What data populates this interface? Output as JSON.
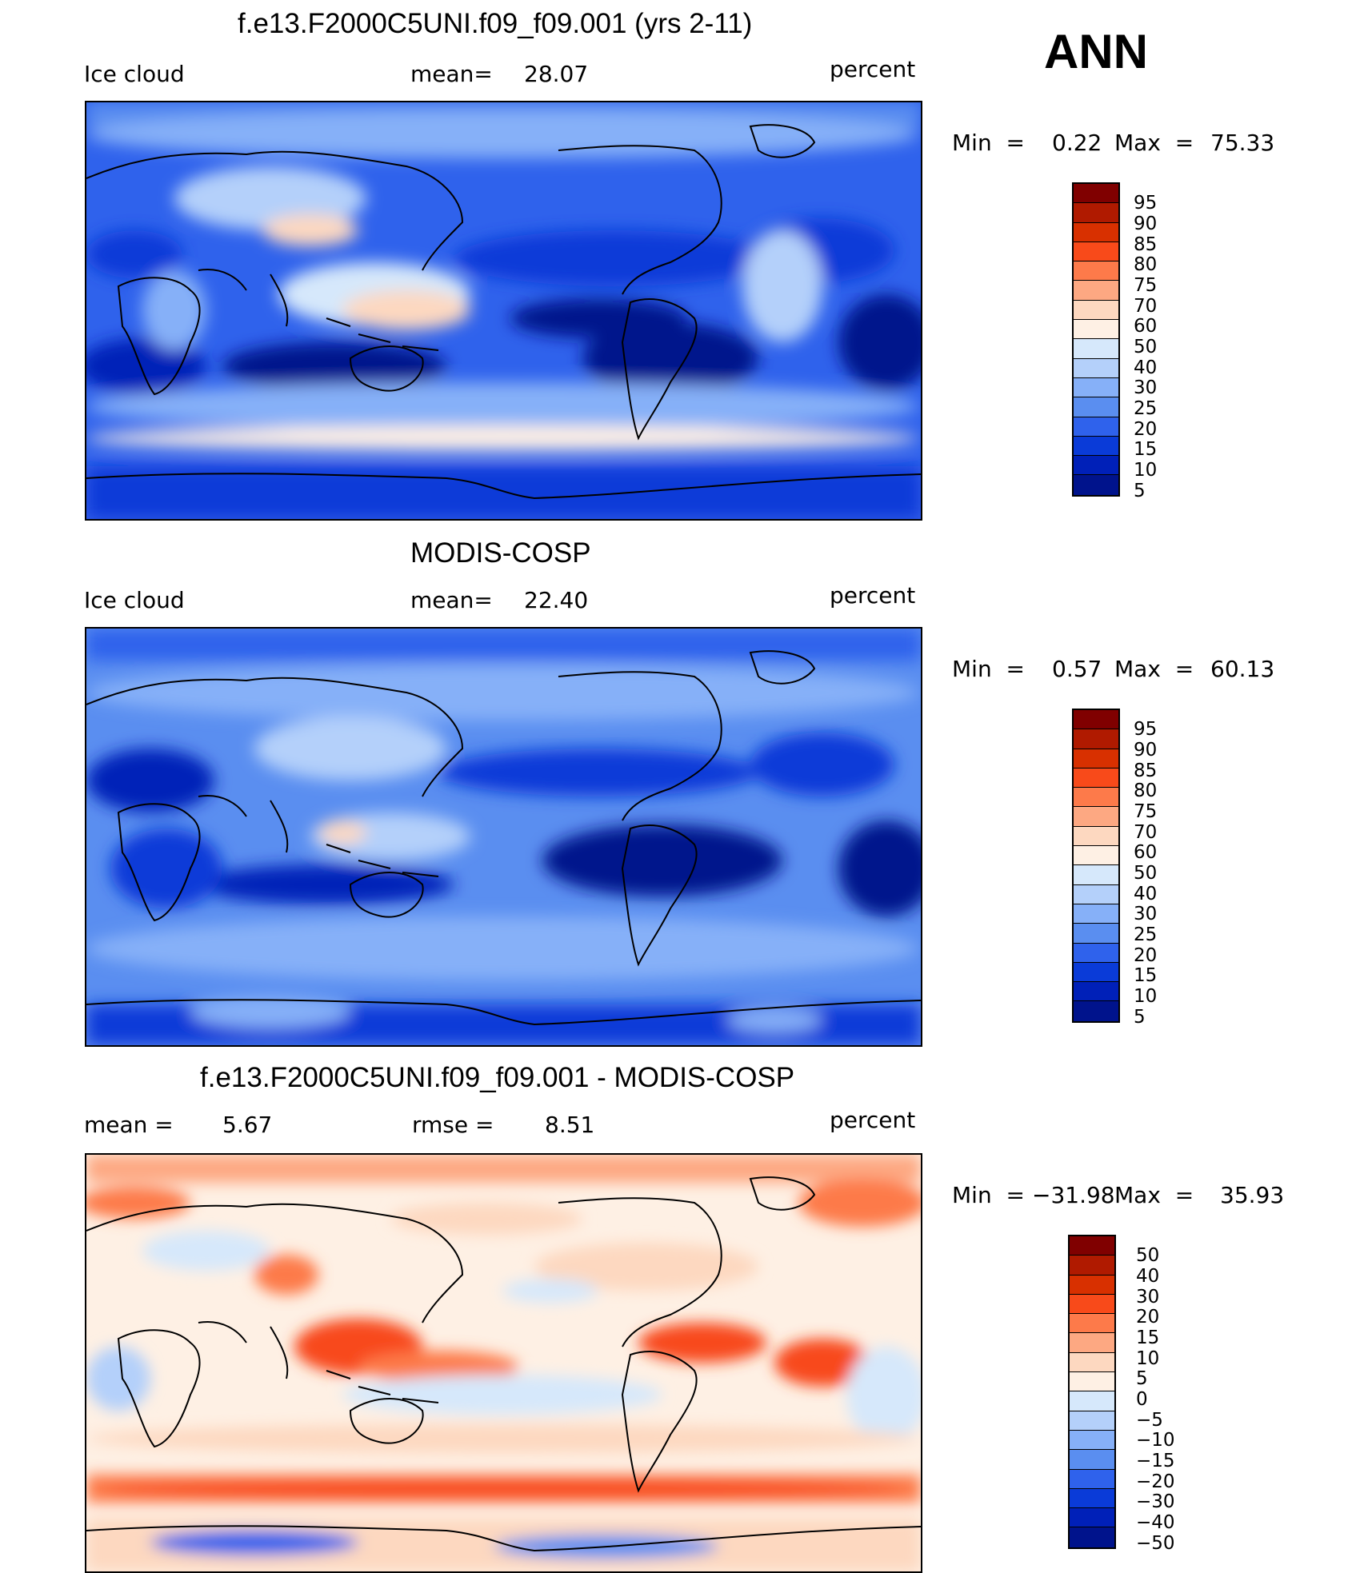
{
  "season": "ANN",
  "panels": [
    {
      "title": "f.e13.F2000C5UNI.f09_f09.001 (yrs 2-11)",
      "left_label": "Ice cloud",
      "mid_label": "mean=",
      "mid_value": "28.07",
      "units": "percent",
      "min_label": "Min  =",
      "min_value": "0.22",
      "max_label": "Max  =",
      "max_value": "75.33",
      "legend": [
        "95",
        "90",
        "85",
        "80",
        "75",
        "70",
        "60",
        "50",
        "40",
        "30",
        "25",
        "20",
        "15",
        "10",
        "5"
      ]
    },
    {
      "title": "MODIS-COSP",
      "left_label": "Ice cloud",
      "mid_label": "mean=",
      "mid_value": "22.40",
      "units": "percent",
      "min_label": "Min  =",
      "min_value": "0.57",
      "max_label": "Max  =",
      "max_value": "60.13",
      "legend": [
        "95",
        "90",
        "85",
        "80",
        "75",
        "70",
        "60",
        "50",
        "40",
        "30",
        "25",
        "20",
        "15",
        "10",
        "5"
      ]
    },
    {
      "title": "f.e13.F2000C5UNI.f09_f09.001 - MODIS-COSP",
      "left_label": "mean =",
      "left_value": "5.67",
      "mid_label": "rmse =",
      "mid_value": "8.51",
      "units": "percent",
      "min_label": "Min  =",
      "min_value": "−31.98",
      "max_label": "Max  =",
      "max_value": "35.93",
      "legend": [
        "50",
        "40",
        "30",
        "20",
        "15",
        "10",
        "5",
        "0",
        "−5",
        "−10",
        "−15",
        "−20",
        "−30",
        "−40",
        "−50"
      ]
    }
  ],
  "colors": {
    "scale": [
      "#800000",
      "#b01a00",
      "#d83000",
      "#f84a1a",
      "#fd7a4a",
      "#fda882",
      "#fdd8c0",
      "#fef0e4",
      "#d6e8fb",
      "#b4d0fa",
      "#86b0f8",
      "#5a8ef0",
      "#2f62ec",
      "#0a3bd8",
      "#0020b8",
      "#00138c"
    ],
    "abs_scale": [
      "#800000",
      "#b01a00",
      "#d83000",
      "#f84a1a",
      "#fd7a4a",
      "#fda882",
      "#fdd8c0",
      "#d6e8fb",
      "#b4d0fa",
      "#86b0f8",
      "#5a8ef0",
      "#2f62ec",
      "#0a3bd8",
      "#0020b8",
      "#00138c"
    ]
  }
}
